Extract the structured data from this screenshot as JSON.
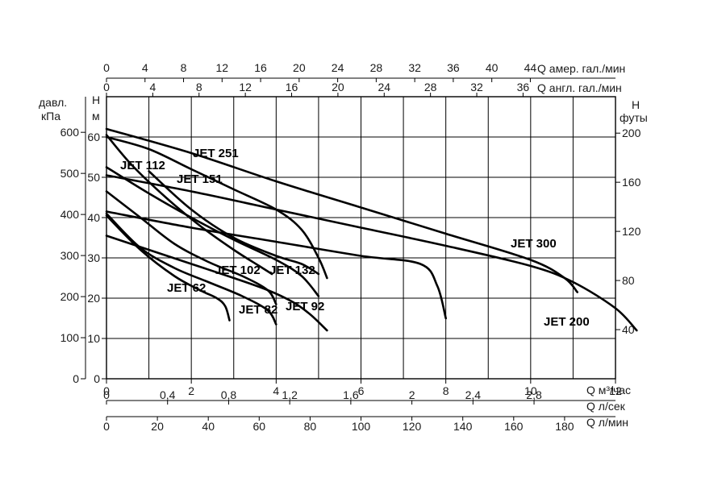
{
  "chart_data": {
    "type": "line",
    "grid": true,
    "left_axis_1": {
      "label_line1": "давл.",
      "label_line2": "кПа",
      "ticks": [
        "0",
        "100",
        "200",
        "300",
        "400",
        "500",
        "600"
      ]
    },
    "left_axis_2": {
      "label_line1": "H",
      "label_line2": "м",
      "ticks": [
        "0",
        "10",
        "20",
        "30",
        "40",
        "50",
        "60"
      ]
    },
    "right_axis": {
      "label_line1": "H",
      "label_line2": "футы",
      "ticks": [
        "40",
        "80",
        "120",
        "160",
        "200"
      ]
    },
    "top_axis_1": {
      "label": "Q  амер. гал./мин",
      "ticks": [
        "0",
        "4",
        "8",
        "12",
        "16",
        "20",
        "24",
        "28",
        "32",
        "36",
        "40",
        "44"
      ]
    },
    "top_axis_2": {
      "label": "Q  англ. гал./мин",
      "ticks": [
        "0",
        "4",
        "8",
        "12",
        "16",
        "20",
        "24",
        "28",
        "32",
        "36"
      ]
    },
    "bottom_axis_1": {
      "label": "Q  м³/час",
      "ticks": [
        "0",
        "2",
        "4",
        "6",
        "8",
        "10",
        "12"
      ]
    },
    "bottom_axis_2": {
      "label": "Q  л/сек",
      "ticks": [
        "0",
        "0,4",
        "0,8",
        "1,2",
        "1,6",
        "2",
        "2,4",
        "2,8"
      ]
    },
    "bottom_axis_3": {
      "label": "Q  л/мин",
      "ticks": [
        "0",
        "20",
        "40",
        "60",
        "80",
        "100",
        "120",
        "140",
        "160",
        "180"
      ]
    },
    "x_unit": "м³/час",
    "y_unit": "м",
    "xlim": [
      0,
      12
    ],
    "ylim": [
      0,
      70
    ],
    "series": [
      {
        "name": "JET 62",
        "x": [
          0,
          0.8,
          1.6,
          2.2,
          2.6,
          2.8,
          2.9
        ],
        "y": [
          40.5,
          32,
          25.5,
          22,
          20,
          18,
          14.5
        ]
      },
      {
        "name": "JET 82",
        "x": [
          0,
          0.8,
          1.6,
          2.4,
          3.2,
          3.8,
          4.0
        ],
        "y": [
          41,
          32.5,
          27.5,
          24,
          20.5,
          17,
          13.5
        ]
      },
      {
        "name": "JET 92",
        "x": [
          0,
          1,
          2,
          3,
          3.8,
          4.4,
          4.8,
          5.2
        ],
        "y": [
          35.5,
          32,
          28.5,
          25,
          22,
          19,
          16,
          12
        ]
      },
      {
        "name": "JET 102",
        "x": [
          0,
          0.8,
          1.6,
          2.4,
          3.2,
          3.8,
          4.0
        ],
        "y": [
          46.5,
          40,
          33.5,
          29,
          25.5,
          22,
          18.5
        ]
      },
      {
        "name": "JET 112",
        "x": [
          0,
          0.6,
          1.4,
          2.2,
          3.0,
          3.6,
          3.9
        ],
        "y": [
          60.5,
          53,
          45,
          38,
          32,
          28,
          26
        ]
      },
      {
        "name": "JET 132",
        "x": [
          0,
          1,
          2,
          3,
          4,
          4.6,
          5.0
        ],
        "y": [
          52.5,
          46,
          40,
          34.5,
          29.5,
          25.5,
          20.5
        ]
      },
      {
        "name": "JET 151",
        "x": [
          1,
          2,
          3,
          4,
          4.6,
          5.0
        ],
        "y": [
          51.5,
          42,
          35,
          30.5,
          28.5,
          26
        ]
      },
      {
        "name": "JET 251",
        "x": [
          0,
          1,
          2,
          3,
          4,
          4.6,
          5.0,
          5.2
        ],
        "y": [
          60,
          57,
          52,
          47,
          42,
          37,
          30,
          25
        ]
      },
      {
        "name": "JET 300",
        "x": [
          0,
          2,
          4,
          6,
          8,
          10,
          10.8,
          11.1
        ],
        "y": [
          62,
          56,
          49,
          42.5,
          36,
          29.5,
          25,
          21.5
        ]
      },
      {
        "name": "JET 200",
        "x": [
          0,
          2,
          4,
          6,
          8,
          10,
          11,
          12,
          12.5
        ],
        "y": [
          50.5,
          46.5,
          42,
          37.5,
          33,
          28,
          24,
          17.5,
          12
        ]
      },
      {
        "name": "",
        "x": [
          0,
          2,
          4,
          6,
          7.4,
          7.8,
          8.0
        ],
        "y": [
          41.5,
          37.5,
          34,
          30.5,
          28.5,
          23,
          15
        ]
      }
    ],
    "series_labels": [
      "JET 62",
      "JET 82",
      "JET 92",
      "JET 102",
      "JET 112",
      "JET 132",
      "JET 151",
      "JET 251",
      "JET 300",
      "JET 200"
    ]
  }
}
